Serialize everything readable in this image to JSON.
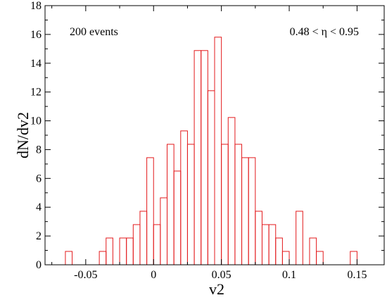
{
  "chart_data": {
    "type": "bar",
    "title": "",
    "xlabel": "v2",
    "ylabel": "dN/dv2",
    "xlim": [
      -0.08,
      0.17
    ],
    "ylim": [
      0,
      18
    ],
    "bin_width": 0.005,
    "x_ticks": [
      -0.05,
      0,
      0.05,
      0.1,
      0.15
    ],
    "x_tick_labels": [
      "-0.05",
      "0",
      "0.05",
      "0.1",
      "0.15"
    ],
    "y_ticks": [
      0,
      2,
      4,
      6,
      8,
      10,
      12,
      14,
      16,
      18
    ],
    "y_tick_labels": [
      "0",
      "2",
      "4",
      "6",
      "8",
      "10",
      "12",
      "14",
      "16",
      "18"
    ],
    "bins": [
      {
        "x0": -0.065,
        "x1": -0.06,
        "value": 0.93
      },
      {
        "x0": -0.04,
        "x1": -0.035,
        "value": 0.93
      },
      {
        "x0": -0.035,
        "x1": -0.03,
        "value": 1.86
      },
      {
        "x0": -0.025,
        "x1": -0.02,
        "value": 1.86
      },
      {
        "x0": -0.02,
        "x1": -0.015,
        "value": 1.86
      },
      {
        "x0": -0.015,
        "x1": -0.01,
        "value": 2.79
      },
      {
        "x0": -0.01,
        "x1": -0.005,
        "value": 3.72
      },
      {
        "x0": -0.005,
        "x1": 0.0,
        "value": 7.44
      },
      {
        "x0": 0.0,
        "x1": 0.005,
        "value": 2.79
      },
      {
        "x0": 0.005,
        "x1": 0.01,
        "value": 4.65
      },
      {
        "x0": 0.01,
        "x1": 0.015,
        "value": 8.37
      },
      {
        "x0": 0.015,
        "x1": 0.02,
        "value": 6.51
      },
      {
        "x0": 0.02,
        "x1": 0.025,
        "value": 9.3
      },
      {
        "x0": 0.025,
        "x1": 0.03,
        "value": 8.37
      },
      {
        "x0": 0.03,
        "x1": 0.035,
        "value": 14.88
      },
      {
        "x0": 0.035,
        "x1": 0.04,
        "value": 14.88
      },
      {
        "x0": 0.04,
        "x1": 0.045,
        "value": 12.09
      },
      {
        "x0": 0.045,
        "x1": 0.05,
        "value": 15.81
      },
      {
        "x0": 0.05,
        "x1": 0.055,
        "value": 8.37
      },
      {
        "x0": 0.055,
        "x1": 0.06,
        "value": 10.23
      },
      {
        "x0": 0.06,
        "x1": 0.065,
        "value": 8.37
      },
      {
        "x0": 0.065,
        "x1": 0.07,
        "value": 7.44
      },
      {
        "x0": 0.07,
        "x1": 0.075,
        "value": 7.44
      },
      {
        "x0": 0.075,
        "x1": 0.08,
        "value": 3.72
      },
      {
        "x0": 0.08,
        "x1": 0.085,
        "value": 2.79
      },
      {
        "x0": 0.085,
        "x1": 0.09,
        "value": 2.79
      },
      {
        "x0": 0.09,
        "x1": 0.095,
        "value": 1.86
      },
      {
        "x0": 0.095,
        "x1": 0.1,
        "value": 0.93
      },
      {
        "x0": 0.105,
        "x1": 0.11,
        "value": 3.72
      },
      {
        "x0": 0.115,
        "x1": 0.12,
        "value": 1.86
      },
      {
        "x0": 0.12,
        "x1": 0.125,
        "value": 0.93
      },
      {
        "x0": 0.145,
        "x1": 0.15,
        "value": 0.93
      }
    ],
    "annotations": [
      "200 events",
      "0.48 < η < 0.95"
    ],
    "bar_color": "#e31a1c",
    "grid": false,
    "legend": "none"
  }
}
